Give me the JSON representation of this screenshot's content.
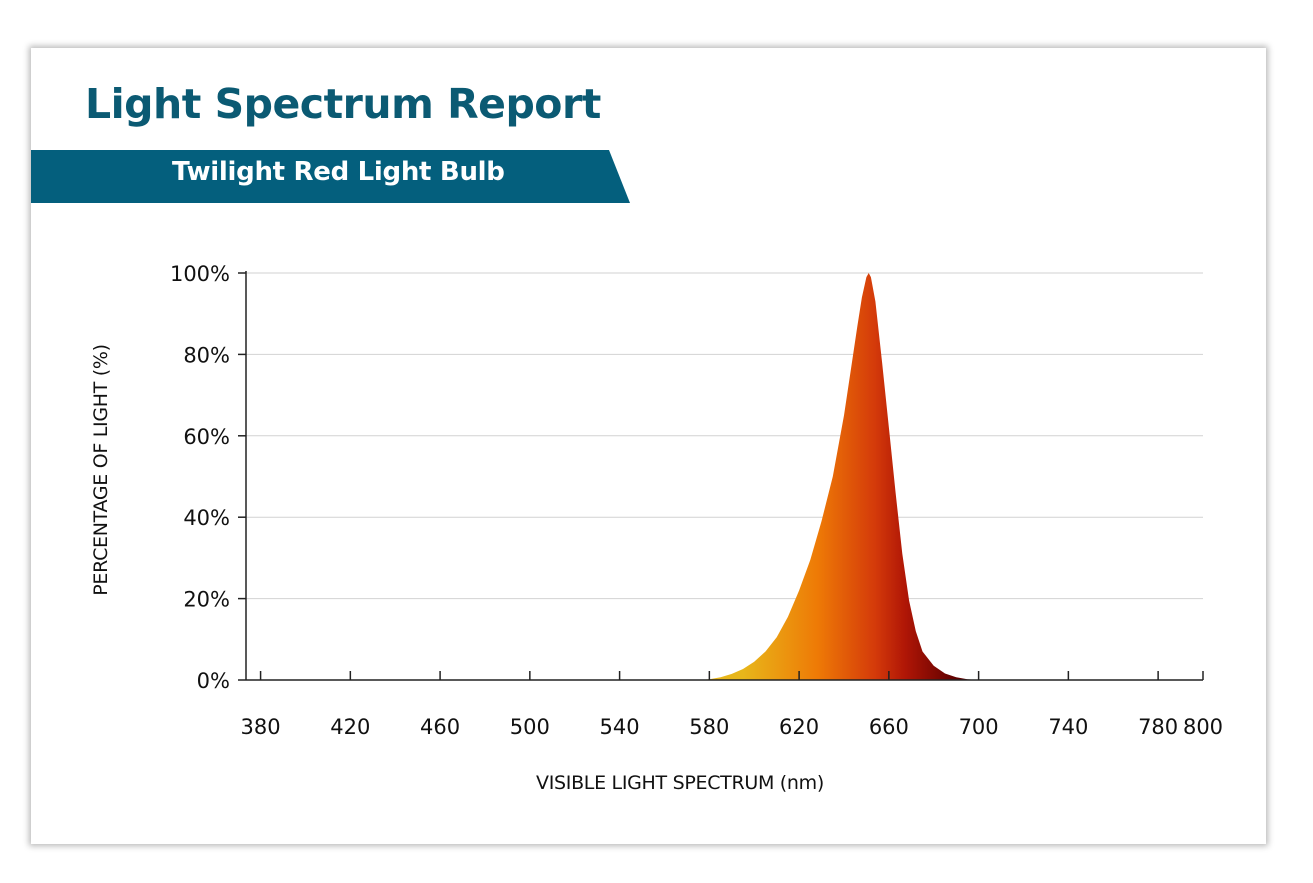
{
  "report": {
    "title": "Light Spectrum Report",
    "subtitle": "Twilight Red Light Bulb"
  },
  "colors": {
    "title": "#0b5a73",
    "banner": "#045f7d",
    "gradient": [
      "#e8b61a",
      "#ee7a06",
      "#d43a0a",
      "#b01606",
      "#5e0000"
    ]
  },
  "chart_data": {
    "type": "area",
    "xlabel": "VISIBLE LIGHT SPECTRUM (nm)",
    "ylabel": "PERCENTAGE OF LIGHT (%)",
    "xlim": [
      373.5,
      800
    ],
    "ylim": [
      0,
      100
    ],
    "x_ticks": [
      380,
      420,
      460,
      500,
      540,
      580,
      620,
      660,
      700,
      740,
      780,
      800
    ],
    "x_tick_labels": [
      "380",
      "420",
      "460",
      "500",
      "540",
      "580",
      "620",
      "660",
      "700",
      "740",
      "780",
      "800"
    ],
    "y_ticks": [
      0,
      20,
      40,
      60,
      80,
      100
    ],
    "y_tick_labels": [
      "0%",
      "20%",
      "40%",
      "60%",
      "80%",
      "100%"
    ],
    "grid": true,
    "series": [
      {
        "x": [
          575,
          580,
          585,
          590,
          595,
          600,
          605,
          610,
          615,
          620,
          625,
          630,
          635,
          640,
          643,
          646,
          648,
          650,
          651,
          652,
          654,
          657,
          660,
          663,
          666,
          669,
          672,
          675,
          680,
          685,
          690,
          695,
          700
        ],
        "values": [
          0,
          0.2,
          0.7,
          1.5,
          2.7,
          4.5,
          7,
          10.5,
          15.5,
          22,
          29.5,
          39,
          50,
          65,
          76,
          87,
          94,
          99,
          100,
          99,
          93,
          78,
          62,
          46,
          31,
          19.5,
          12,
          7,
          3.5,
          1.6,
          0.7,
          0.2,
          0
        ]
      }
    ]
  }
}
